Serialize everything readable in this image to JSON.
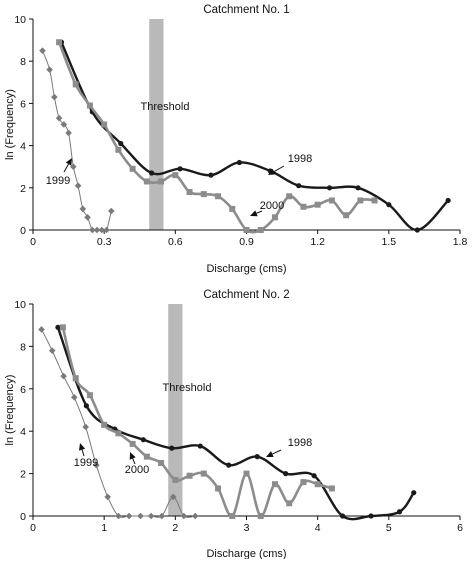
{
  "chart_data": [
    {
      "type": "line",
      "title": "Catchment No. 1",
      "xlabel": "Discharge (cms)",
      "ylabel": "ln (Frequency)",
      "xlim": [
        0,
        1.8
      ],
      "ylim": [
        0,
        10
      ],
      "xticks": [
        "0",
        "0.3",
        "0.6",
        "0.9",
        "1.2",
        "1.5",
        "1.8"
      ],
      "yticks": [
        "0",
        "2",
        "4",
        "6",
        "8",
        "10"
      ],
      "grid": false,
      "threshold": {
        "label": "Threshold",
        "x_range": [
          0.49,
          0.55
        ]
      },
      "series": [
        {
          "name": "1998",
          "color": "#1a1a1a",
          "marker": "circle",
          "x": [
            0.12,
            0.25,
            0.37,
            0.5,
            0.62,
            0.75,
            0.87,
            1.0,
            1.12,
            1.25,
            1.37,
            1.5,
            1.62,
            1.75
          ],
          "y": [
            8.9,
            5.6,
            4.1,
            2.7,
            2.9,
            2.6,
            3.2,
            2.8,
            2.1,
            2.0,
            2.0,
            1.2,
            0.0,
            1.4
          ]
        },
        {
          "name": "2000",
          "color": "#8c8c8c",
          "marker": "square",
          "x": [
            0.11,
            0.18,
            0.24,
            0.3,
            0.36,
            0.42,
            0.48,
            0.54,
            0.6,
            0.66,
            0.72,
            0.78,
            0.84,
            0.9,
            0.96,
            1.02,
            1.08,
            1.14,
            1.2,
            1.26,
            1.32,
            1.38,
            1.44
          ],
          "y": [
            8.9,
            6.9,
            5.9,
            5.0,
            3.8,
            2.9,
            2.3,
            2.3,
            2.6,
            1.8,
            1.7,
            1.6,
            1.0,
            0.0,
            0.0,
            0.6,
            1.6,
            1.1,
            1.2,
            1.4,
            0.7,
            1.4,
            1.4
          ]
        },
        {
          "name": "1999",
          "color": "#7a7a7a",
          "marker": "diamond",
          "x": [
            0.04,
            0.07,
            0.09,
            0.11,
            0.13,
            0.15,
            0.17,
            0.19,
            0.21,
            0.23,
            0.25,
            0.27,
            0.29,
            0.31,
            0.33
          ],
          "y": [
            8.5,
            7.6,
            6.3,
            5.3,
            5.0,
            4.6,
            3.0,
            2.1,
            1.0,
            0.6,
            0.0,
            0.0,
            0.0,
            0.0,
            0.9
          ]
        }
      ],
      "annotations": [
        {
          "text": "1998",
          "series": "1998"
        },
        {
          "text": "2000",
          "series": "2000"
        },
        {
          "text": "1999",
          "series": "1999"
        }
      ]
    },
    {
      "type": "line",
      "title": "Catchment No. 2",
      "xlabel": "Discharge (cms)",
      "ylabel": "ln (Frequency)",
      "xlim": [
        0,
        6
      ],
      "ylim": [
        0,
        10
      ],
      "xticks": [
        "0",
        "1",
        "2",
        "3",
        "4",
        "5",
        "6"
      ],
      "yticks": [
        "0",
        "2",
        "4",
        "6",
        "8",
        "10"
      ],
      "grid": false,
      "threshold": {
        "label": "Threshold",
        "x_range": [
          1.9,
          2.1
        ]
      },
      "series": [
        {
          "name": "1998",
          "color": "#1a1a1a",
          "marker": "circle",
          "x": [
            0.35,
            0.75,
            1.15,
            1.55,
            1.95,
            2.35,
            2.75,
            3.15,
            3.55,
            3.95,
            4.35,
            4.75,
            5.15,
            5.35
          ],
          "y": [
            8.9,
            5.2,
            4.1,
            3.6,
            3.2,
            3.3,
            2.4,
            2.8,
            2.0,
            1.9,
            0.0,
            0.0,
            0.2,
            1.1
          ]
        },
        {
          "name": "2000",
          "color": "#8c8c8c",
          "marker": "square",
          "x": [
            0.42,
            0.6,
            0.8,
            1.0,
            1.2,
            1.4,
            1.6,
            1.8,
            2.0,
            2.2,
            2.4,
            2.6,
            2.8,
            3.0,
            3.2,
            3.4,
            3.6,
            3.8,
            4.0,
            4.2
          ],
          "y": [
            8.9,
            6.5,
            5.7,
            4.3,
            3.9,
            3.4,
            2.8,
            2.5,
            1.7,
            1.9,
            2.0,
            1.3,
            0.0,
            2.0,
            0.0,
            1.5,
            0.6,
            1.6,
            1.5,
            1.3
          ]
        },
        {
          "name": "1999",
          "color": "#7a7a7a",
          "marker": "diamond",
          "x": [
            0.12,
            0.27,
            0.43,
            0.58,
            0.74,
            0.89,
            1.05,
            1.2,
            1.35,
            1.51,
            1.66,
            1.81,
            1.97,
            2.12,
            2.28
          ],
          "y": [
            8.8,
            7.8,
            6.6,
            5.6,
            4.2,
            2.4,
            0.9,
            0.0,
            0.0,
            0.0,
            0.0,
            0.0,
            0.9,
            0.0,
            0.0
          ]
        }
      ],
      "annotations": [
        {
          "text": "1998",
          "series": "1998"
        },
        {
          "text": "2000",
          "series": "2000"
        },
        {
          "text": "1999",
          "series": "1999"
        }
      ]
    }
  ]
}
